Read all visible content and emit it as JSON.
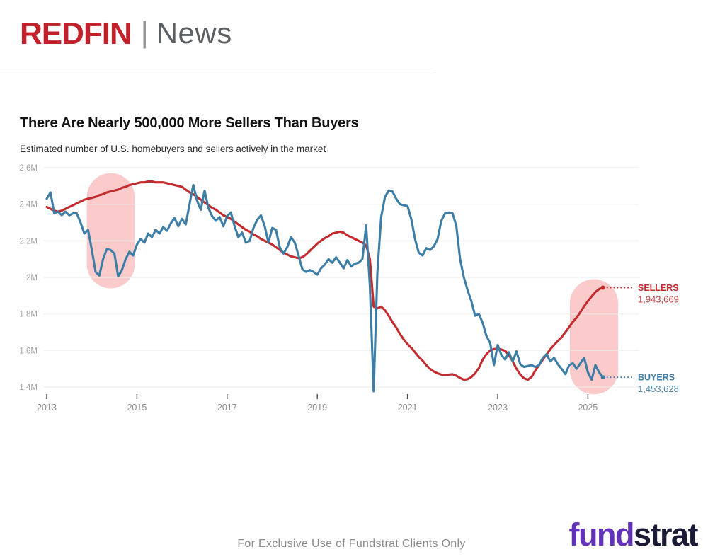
{
  "header": {
    "brand": "REDFIN",
    "divider": "|",
    "section": "News"
  },
  "chart": {
    "title": "There Are Nearly 500,000 More Sellers Than Buyers",
    "subtitle": "Estimated number of U.S. homebuyers and sellers actively in the market"
  },
  "chart_data": {
    "type": "line",
    "title": "There Are Nearly 500,000 More Sellers Than Buyers",
    "subtitle": "Estimated number of U.S. homebuyers and sellers actively in the market",
    "unit": "millions of people",
    "frequency": "monthly",
    "x_start": "2013-01",
    "x_end": "2025-05",
    "grid": true,
    "legend_position": "right-edge-labels",
    "ylim": [
      1.35,
      2.65
    ],
    "y_ticks": [
      2.6,
      2.4,
      2.2,
      2.0,
      1.8,
      1.6,
      1.4
    ],
    "y_tick_labels": [
      "2.6M",
      "2.4M",
      "2.2M",
      "2M",
      "1.8M",
      "1.6M",
      "1.4M"
    ],
    "x_tick_labels": [
      "2013",
      "2015",
      "2017",
      "2019",
      "2021",
      "2023",
      "2025"
    ],
    "series": [
      {
        "name": "SELLERS",
        "color": "#c32b2e",
        "final_value": 1943669,
        "display_value": "1,943,669",
        "values": [
          2.385,
          2.375,
          2.365,
          2.36,
          2.365,
          2.375,
          2.385,
          2.395,
          2.405,
          2.415,
          2.425,
          2.43,
          2.435,
          2.44,
          2.45,
          2.455,
          2.465,
          2.47,
          2.475,
          2.48,
          2.49,
          2.495,
          2.505,
          2.51,
          2.515,
          2.52,
          2.52,
          2.525,
          2.525,
          2.52,
          2.52,
          2.52,
          2.515,
          2.51,
          2.505,
          2.5,
          2.495,
          2.48,
          2.465,
          2.455,
          2.44,
          2.425,
          2.41,
          2.395,
          2.38,
          2.37,
          2.355,
          2.34,
          2.33,
          2.32,
          2.305,
          2.29,
          2.275,
          2.26,
          2.25,
          2.235,
          2.225,
          2.21,
          2.2,
          2.19,
          2.18,
          2.165,
          2.15,
          2.135,
          2.125,
          2.115,
          2.11,
          2.105,
          2.11,
          2.125,
          2.145,
          2.165,
          2.185,
          2.2,
          2.215,
          2.225,
          2.24,
          2.245,
          2.25,
          2.245,
          2.23,
          2.22,
          2.21,
          2.2,
          2.19,
          2.175,
          2.1,
          1.84,
          1.83,
          1.84,
          1.82,
          1.79,
          1.755,
          1.725,
          1.69,
          1.66,
          1.635,
          1.615,
          1.59,
          1.565,
          1.545,
          1.52,
          1.5,
          1.485,
          1.475,
          1.468,
          1.465,
          1.468,
          1.47,
          1.462,
          1.45,
          1.44,
          1.443,
          1.455,
          1.475,
          1.505,
          1.55,
          1.58,
          1.6,
          1.608,
          1.61,
          1.605,
          1.598,
          1.575,
          1.54,
          1.5,
          1.468,
          1.448,
          1.44,
          1.455,
          1.49,
          1.52,
          1.55,
          1.578,
          1.607,
          1.63,
          1.652,
          1.672,
          1.7,
          1.728,
          1.757,
          1.78,
          1.81,
          1.842,
          1.87,
          1.896,
          1.92,
          1.936,
          1.9437
        ]
      },
      {
        "name": "BUYERS",
        "color": "#3d7ea6",
        "final_value": 1453628,
        "display_value": "1,453,628",
        "values": [
          2.43,
          2.465,
          2.35,
          2.36,
          2.34,
          2.36,
          2.34,
          2.35,
          2.35,
          2.3,
          2.24,
          2.26,
          2.15,
          2.03,
          2.01,
          2.1,
          2.155,
          2.15,
          2.13,
          2.005,
          2.04,
          2.1,
          2.14,
          2.12,
          2.18,
          2.21,
          2.19,
          2.24,
          2.22,
          2.26,
          2.24,
          2.275,
          2.255,
          2.295,
          2.325,
          2.28,
          2.32,
          2.29,
          2.4,
          2.505,
          2.42,
          2.37,
          2.475,
          2.38,
          2.335,
          2.31,
          2.33,
          2.28,
          2.335,
          2.355,
          2.28,
          2.22,
          2.245,
          2.19,
          2.2,
          2.27,
          2.315,
          2.34,
          2.28,
          2.19,
          2.27,
          2.26,
          2.165,
          2.13,
          2.165,
          2.22,
          2.19,
          2.12,
          2.045,
          2.03,
          2.04,
          2.03,
          2.015,
          2.05,
          2.07,
          2.1,
          2.08,
          2.11,
          2.08,
          2.05,
          2.095,
          2.06,
          2.075,
          2.08,
          2.1,
          2.285,
          1.95,
          1.377,
          2.03,
          2.33,
          2.44,
          2.475,
          2.47,
          2.43,
          2.4,
          2.395,
          2.39,
          2.32,
          2.21,
          2.135,
          2.12,
          2.16,
          2.15,
          2.17,
          2.21,
          2.31,
          2.35,
          2.355,
          2.35,
          2.28,
          2.1,
          2.0,
          1.93,
          1.87,
          1.79,
          1.8,
          1.75,
          1.68,
          1.64,
          1.52,
          1.63,
          1.575,
          1.55,
          1.59,
          1.54,
          1.595,
          1.525,
          1.51,
          1.515,
          1.52,
          1.51,
          1.52,
          1.56,
          1.58,
          1.54,
          1.56,
          1.525,
          1.5,
          1.47,
          1.52,
          1.53,
          1.5,
          1.53,
          1.56,
          1.48,
          1.44,
          1.52,
          1.48,
          1.4536
        ]
      }
    ],
    "highlights": [
      {
        "t_from": 2013.89,
        "t_to": 2014.95,
        "v_top": 2.57,
        "v_bottom": 1.94
      },
      {
        "t_from": 2024.6,
        "t_to": 2025.67,
        "v_top": 1.99,
        "v_bottom": 1.36
      }
    ],
    "highlight_color": "#fbcaca"
  },
  "footer": {
    "disclaimer": "For Exclusive Use of Fundstrat Clients Only",
    "logo_part1": "fund",
    "logo_part2": "strat"
  },
  "colors": {
    "brand_red": "#c2202a",
    "news_gray": "#5c6063",
    "sellers_red": "#c32b2e",
    "buyers_blue": "#3d7ea6",
    "highlight_pink": "#fbcaca",
    "gridline": "#ececec",
    "axis_label_gray": "#8c8c8c",
    "fund_purple": "#6233b8",
    "strat_navy": "#1b1b35"
  }
}
